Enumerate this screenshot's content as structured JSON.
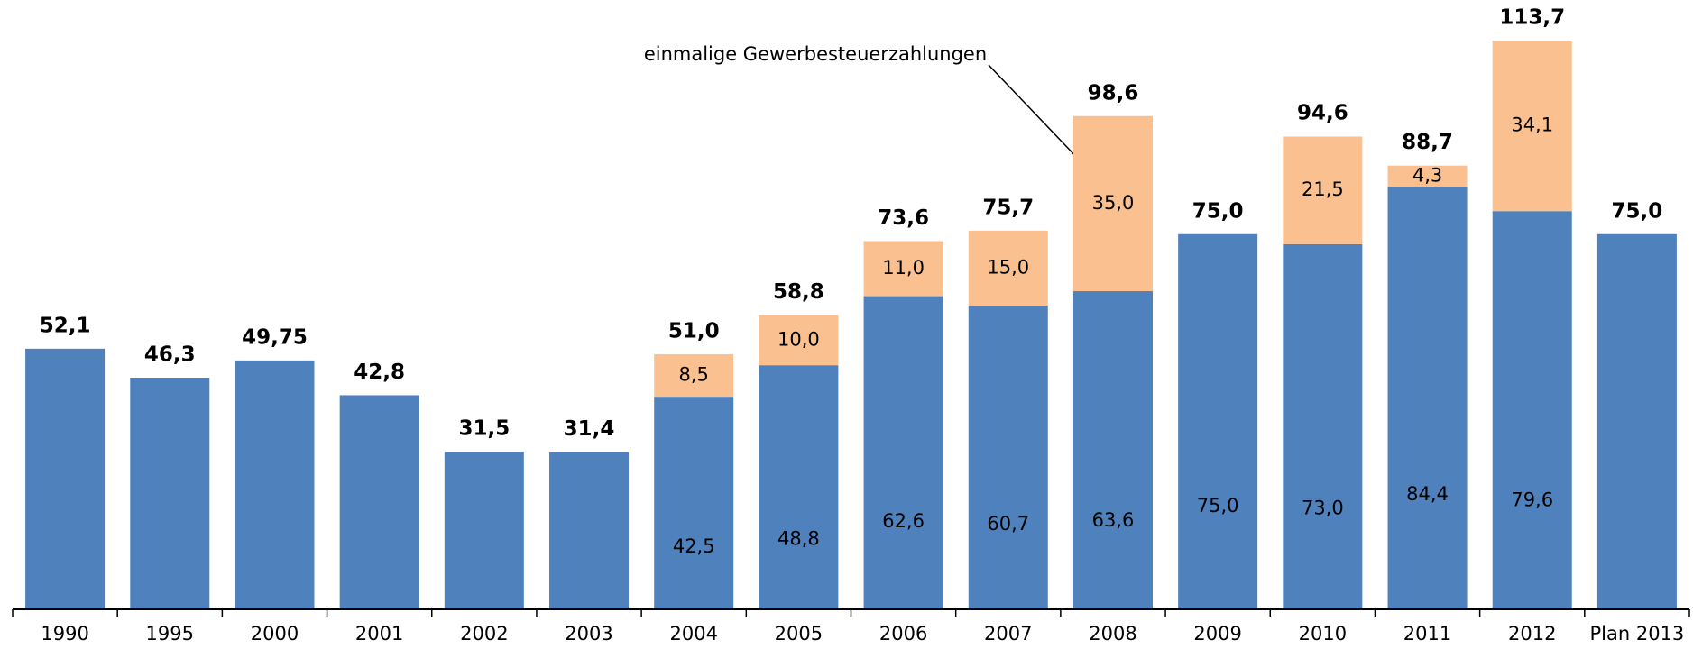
{
  "chart_data": {
    "type": "stacked_bar",
    "annotation": "einmalige Gewerbesteuerzahlungen",
    "categories": [
      "1990",
      "1995",
      "2000",
      "2001",
      "2002",
      "2003",
      "2004",
      "2005",
      "2006",
      "2007",
      "2008",
      "2009",
      "2010",
      "2011",
      "2012",
      "Plan 2013"
    ],
    "series": [
      {
        "color": "#4f81bd",
        "values": [
          52.1,
          46.3,
          49.75,
          42.8,
          31.5,
          31.4,
          42.5,
          48.8,
          62.6,
          60.7,
          63.6,
          75.0,
          73.0,
          84.4,
          79.6,
          75.0
        ],
        "value_labels": [
          null,
          null,
          null,
          null,
          null,
          null,
          "42,5",
          "48,8",
          "62,6",
          "60,7",
          "63,6",
          "75,0",
          "73,0",
          "84,4",
          "79,6",
          null
        ]
      },
      {
        "color": "#fac08f",
        "values": [
          null,
          null,
          null,
          null,
          null,
          null,
          8.5,
          10.0,
          11.0,
          15.0,
          35.0,
          null,
          21.5,
          4.3,
          34.1,
          null
        ],
        "value_labels": [
          null,
          null,
          null,
          null,
          null,
          null,
          "8,5",
          "10,0",
          "11,0",
          "15,0",
          "35,0",
          null,
          "21,5",
          "4,3",
          "34,1",
          null
        ]
      }
    ],
    "totals": [
      52.1,
      46.3,
      49.75,
      42.8,
      31.5,
      31.4,
      51.0,
      58.8,
      73.6,
      75.7,
      98.6,
      75.0,
      94.6,
      88.7,
      113.7,
      75.0
    ],
    "total_labels": [
      "52,1",
      "46,3",
      "49,75",
      "42,8",
      "31,5",
      "31,4",
      "51,0",
      "58,8",
      "73,6",
      "75,7",
      "98,6",
      "75,0",
      "94,6",
      "88,7",
      "113,7",
      "75,0"
    ],
    "ylim": [
      0,
      120
    ]
  }
}
